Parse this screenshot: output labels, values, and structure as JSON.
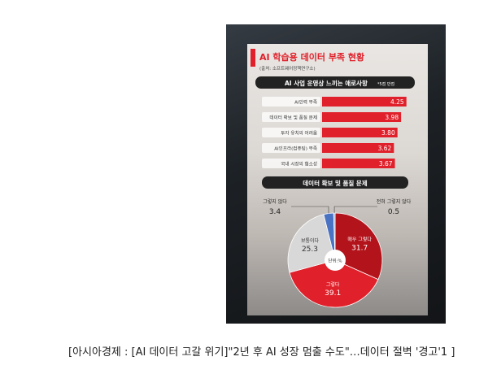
{
  "caption": "[아시아경제 : [AI 데이터 고갈 위기]\"2년 후 AI 성장 멈출 수도\"…데이터 절벽 '경고'1 ]",
  "infographic": {
    "title": "AI 학습용 데이터 부족 현황",
    "source": "(출처: 소프트웨어정책연구소)",
    "bar_section_title": "AI 사업 운영상 느끼는 애로사항",
    "bar_section_note": "*5점 만점",
    "pie_section_title": "데이터 확보 및 품질 문제",
    "pie_center_label": "단위:%",
    "colors": {
      "accent_red": "#e0202a",
      "dark_red": "#b3131b",
      "light_gray": "#d8d8d8",
      "blue": "#4a73c4",
      "header_dark": "#222222"
    }
  },
  "chart_data": [
    {
      "type": "bar",
      "orientation": "horizontal",
      "title": "AI 사업 운영상 느끼는 애로사항",
      "note": "*5점 만점",
      "categories": [
        "AI인력 부족",
        "데이터 확보 및 품질 문제",
        "투자 유치의 어려움",
        "AI인프라(컴퓨팅) 부족",
        "국내 시장의 협소성"
      ],
      "values": [
        4.25,
        3.98,
        3.8,
        3.62,
        3.67
      ],
      "value_labels": [
        "4.25",
        "3.98",
        "3.80",
        "3.62",
        "3.67"
      ],
      "xlim": [
        0,
        5
      ]
    },
    {
      "type": "pie",
      "title": "데이터 확보 및 품질 문제",
      "unit": "단위:%",
      "slices": [
        {
          "label": "매우 그렇다",
          "value": 31.7,
          "value_label": "31.7",
          "color": "#b3131b"
        },
        {
          "label": "그렇다",
          "value": 39.1,
          "value_label": "39.1",
          "color": "#e0202a"
        },
        {
          "label": "보통이다",
          "value": 25.3,
          "value_label": "25.3",
          "color": "#d8d8d8"
        },
        {
          "label": "그렇지 않다",
          "value": 3.4,
          "value_label": "3.4",
          "color": "#4a73c4"
        },
        {
          "label": "전혀 그렇지 않다",
          "value": 0.5,
          "value_label": "0.5",
          "color": "#9aa8c8"
        }
      ]
    }
  ]
}
